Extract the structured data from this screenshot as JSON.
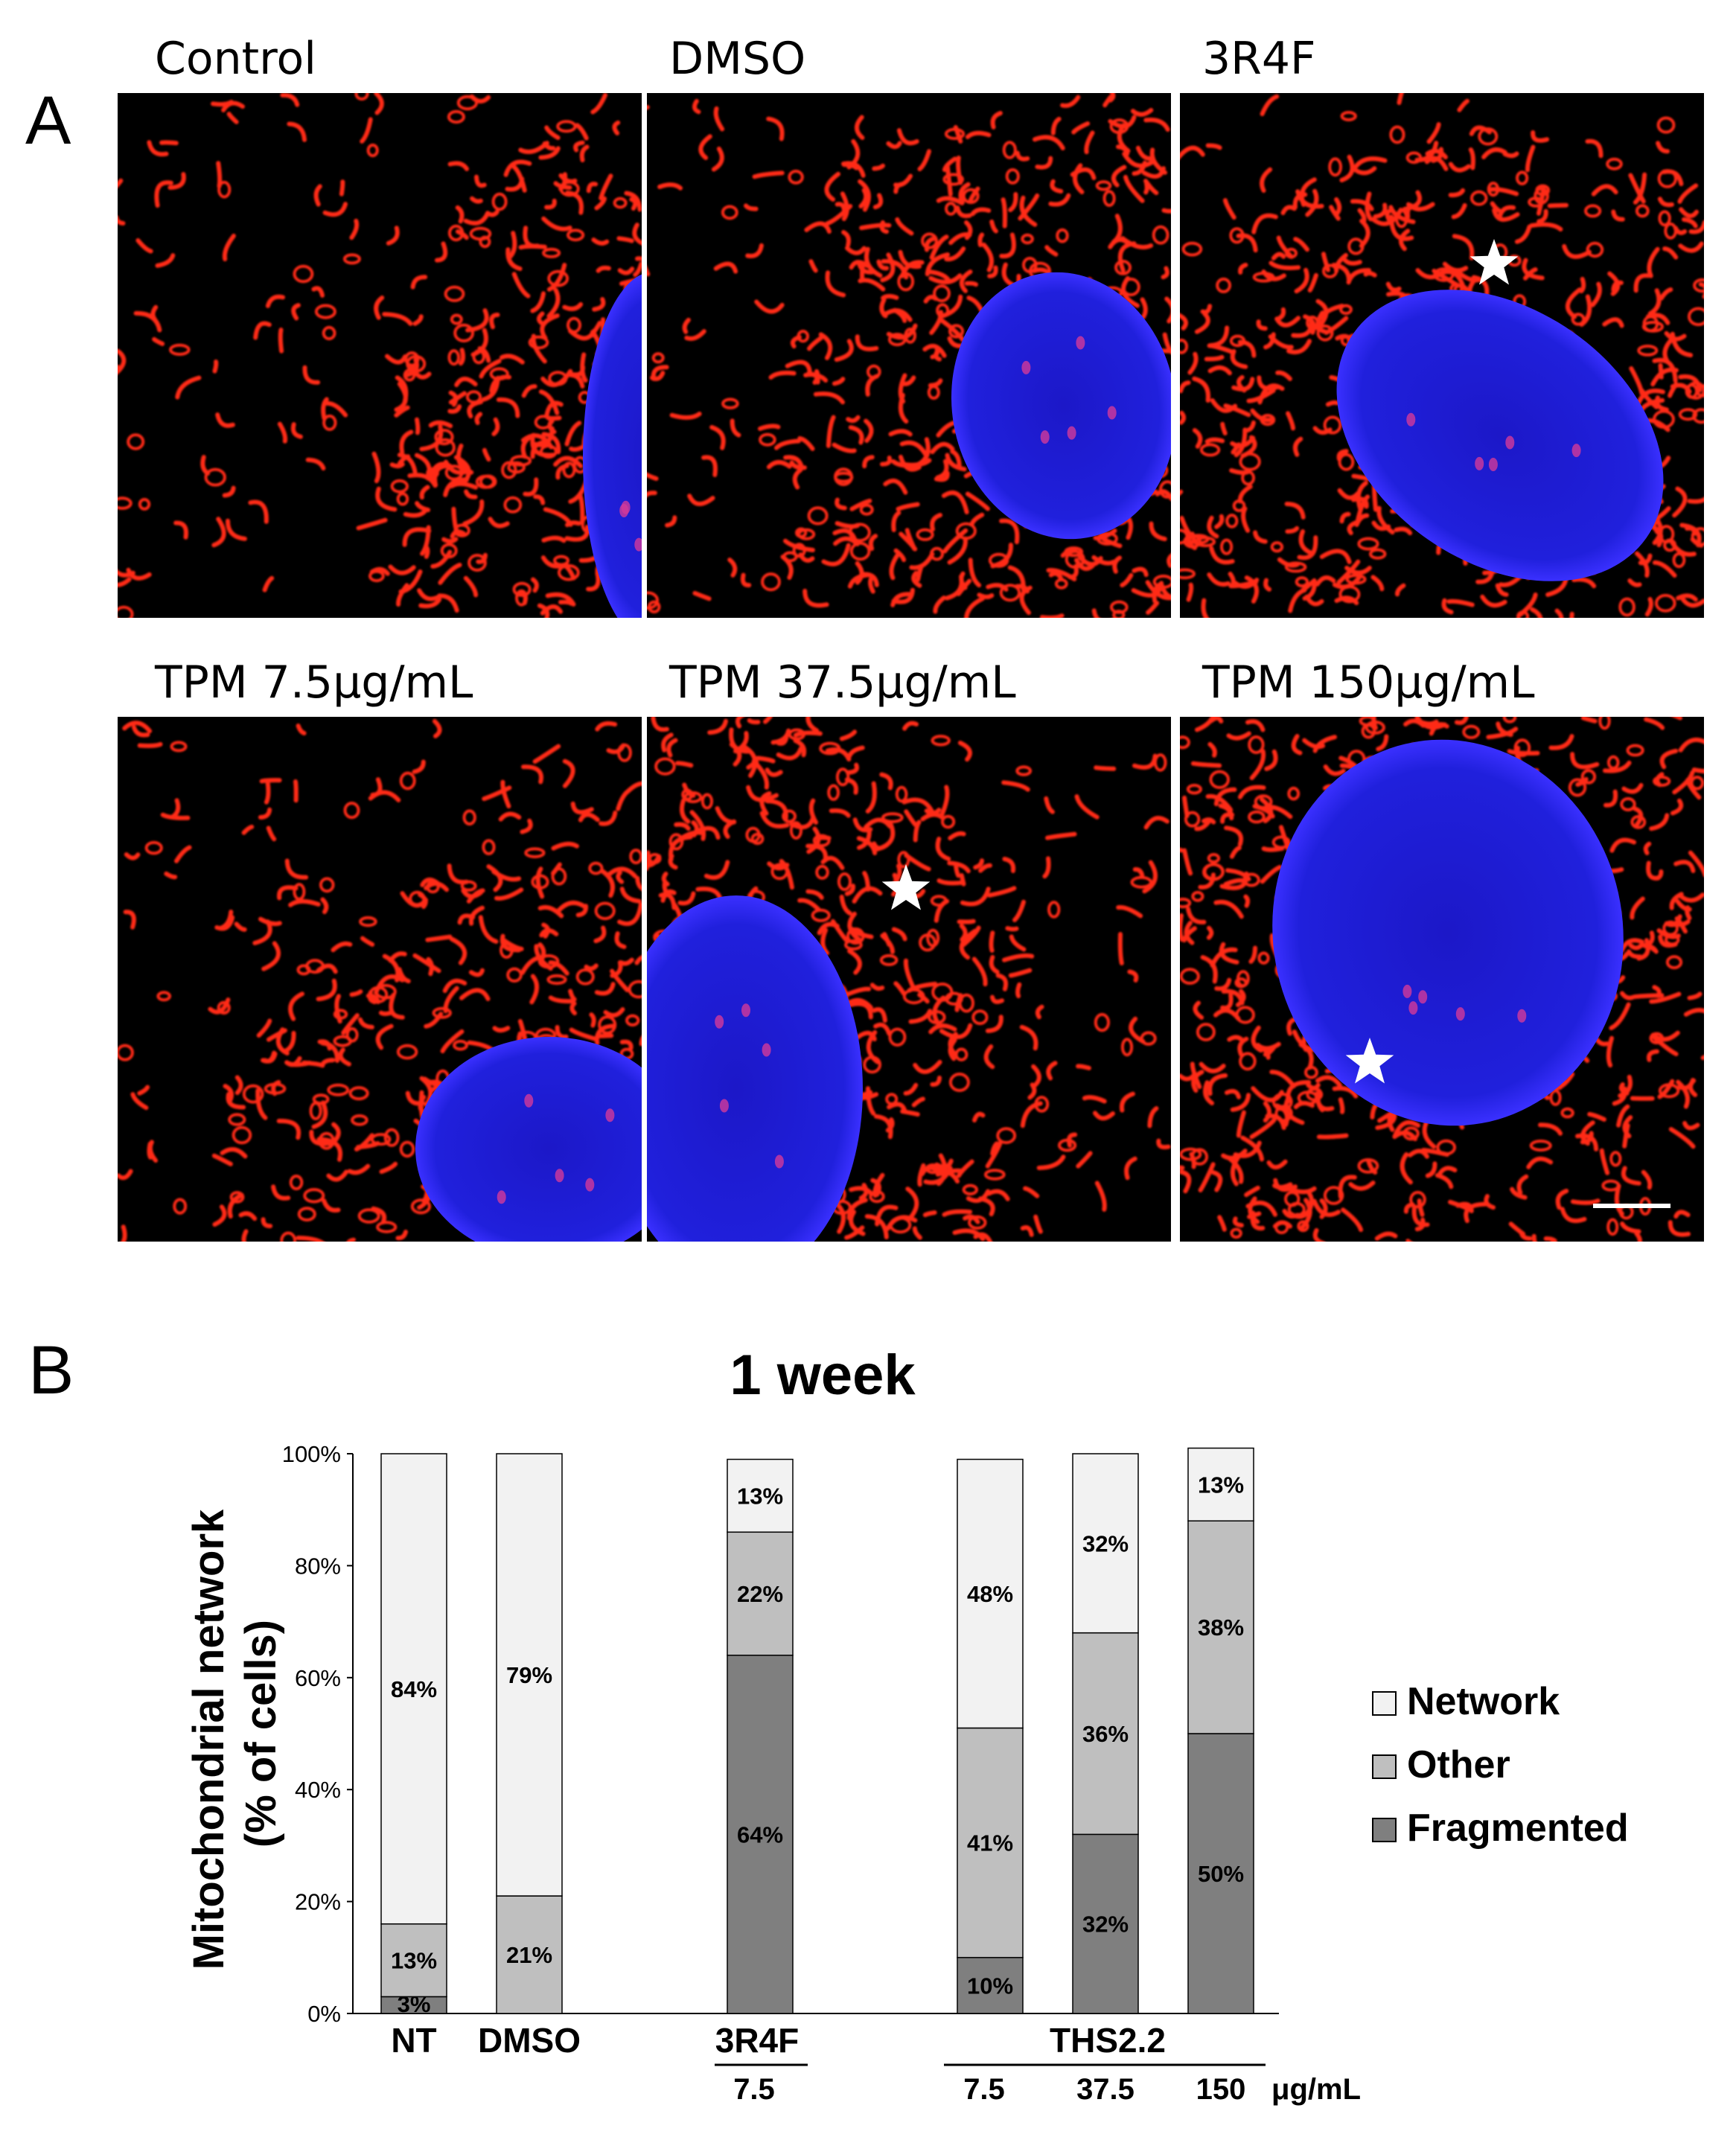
{
  "panel_a": {
    "letter": "A",
    "micrographs": [
      {
        "label": "Control",
        "star": false,
        "scale_bar": false
      },
      {
        "label": "DMSO",
        "star": false,
        "scale_bar": false
      },
      {
        "label": "3R4F",
        "star": true,
        "scale_bar": false
      },
      {
        "label": "TPM 7.5μg/mL",
        "star": false,
        "scale_bar": false
      },
      {
        "label": "TPM 37.5μg/mL",
        "star": true,
        "scale_bar": false
      },
      {
        "label": "TPM 150μg/mL",
        "star": true,
        "scale_bar": true
      }
    ],
    "colors": {
      "mitochondria": "#ff2a18",
      "nucleus": "#1a1ad6",
      "background": "#000000"
    }
  },
  "panel_b": {
    "letter": "B",
    "group_labels": {
      "reference": "3R4F",
      "ths": "THS2.2"
    },
    "dose_labels": [
      "7.5",
      "7.5",
      "37.5",
      "150"
    ],
    "dose_unit": "μg/mL"
  },
  "chart_data": {
    "type": "bar",
    "stacked": true,
    "title": "1 week",
    "ylabel": "Mitochondrial network\n(% of cells)",
    "xlabel": "",
    "ylim": [
      0,
      100
    ],
    "yticks": [
      "0%",
      "20%",
      "40%",
      "60%",
      "80%",
      "100%"
    ],
    "categories": [
      "NT",
      "DMSO",
      "3R4F 7.5",
      "THS2.2 7.5",
      "THS2.2 37.5",
      "THS2.2 150"
    ],
    "series": [
      {
        "name": "Fragmented",
        "color": "#7f7f7f",
        "values": [
          3,
          0,
          64,
          10,
          32,
          50
        ],
        "labels": [
          "3%",
          "",
          "64%",
          "10%",
          "32%",
          "50%"
        ]
      },
      {
        "name": "Other",
        "color": "#bfbfbf",
        "values": [
          13,
          21,
          22,
          41,
          36,
          38
        ],
        "labels": [
          "13%",
          "21%",
          "22%",
          "41%",
          "36%",
          "38%"
        ]
      },
      {
        "name": "Network",
        "color": "#f2f2f2",
        "values": [
          84,
          79,
          13,
          48,
          32,
          13
        ],
        "labels": [
          "84%",
          "79%",
          "13%",
          "48%",
          "32%",
          "13%"
        ]
      }
    ],
    "legend": {
      "position": "right",
      "entries": [
        "Network",
        "Other",
        "Fragmented"
      ]
    },
    "grid": false
  }
}
